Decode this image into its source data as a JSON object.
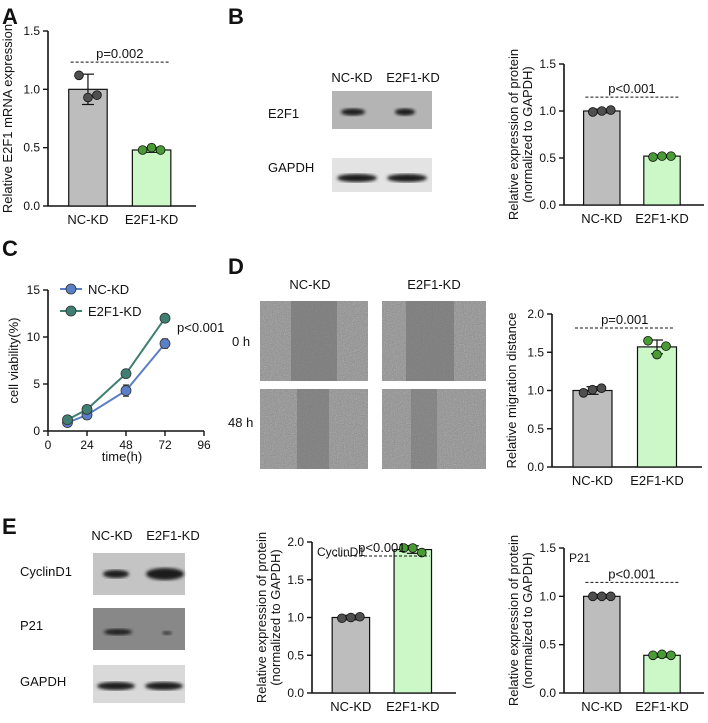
{
  "colors": {
    "nc_bar": "#bdbdbd",
    "e2f1_bar": "#ccf7c7",
    "nc_point": "#4f4f4f",
    "e2f1_point": "#4a9a35",
    "line_nc": "#5b7fc7",
    "line_e2f1": "#3f7f72",
    "blot_bg": "#b4b4b4",
    "blot_band": "#1a1a1a",
    "micro_bg": "#8e8e8e"
  },
  "panels": {
    "A": "A",
    "B": "B",
    "C": "C",
    "D": "D",
    "E": "E"
  },
  "blots": {
    "B": {
      "lanes": [
        "NC-KD",
        "E2F1-KD"
      ],
      "rows": [
        "E2F1",
        "GAPDH"
      ]
    },
    "E": {
      "lanes": [
        "NC-KD",
        "E2F1-KD"
      ],
      "rows": [
        "CyclinD1",
        "P21",
        "GAPDH"
      ]
    }
  },
  "migration_images": {
    "cols": [
      "NC-KD",
      "E2F1-KD"
    ],
    "rows": [
      "0 h",
      "48 h"
    ]
  },
  "chart_data": [
    {
      "id": "A",
      "type": "bar",
      "title": "",
      "categories": [
        "NC-KD",
        "E2F1-KD"
      ],
      "values": [
        1.0,
        0.48
      ],
      "errors": [
        0.13,
        0.02
      ],
      "points": [
        [
          1.12,
          0.93,
          0.95
        ],
        [
          0.48,
          0.5,
          0.48
        ]
      ],
      "ylabel": "Relative E2F1 mRNA expression",
      "ylim": [
        0,
        1.5
      ],
      "yticks": [
        0.0,
        0.5,
        1.0,
        1.5
      ],
      "p_value": "p=0.002",
      "inner_label": ""
    },
    {
      "id": "B",
      "type": "bar",
      "title": "",
      "categories": [
        "NC-KD",
        "E2F1-KD"
      ],
      "values": [
        1.0,
        0.52
      ],
      "errors": [
        0.02,
        0.01
      ],
      "points": [
        [
          0.99,
          1.0,
          1.01
        ],
        [
          0.51,
          0.52,
          0.52
        ]
      ],
      "ylabel": [
        "Relative expression of protein",
        "(normalized to GAPDH)"
      ],
      "ylim": [
        0,
        1.5
      ],
      "yticks": [
        0.0,
        0.5,
        1.0,
        1.5
      ],
      "p_value": "p<0.001",
      "inner_label": ""
    },
    {
      "id": "C",
      "type": "line",
      "title": "",
      "x": [
        12,
        24,
        48,
        72
      ],
      "series": [
        {
          "name": "NC-KD",
          "values": [
            0.9,
            1.7,
            4.3,
            9.3
          ],
          "errors": [
            0.2,
            0.2,
            0.6,
            0.5
          ]
        },
        {
          "name": "E2F1-KD",
          "values": [
            1.2,
            2.3,
            6.1,
            12.0
          ],
          "errors": [
            0.2,
            0.2,
            0.3,
            0.3
          ]
        }
      ],
      "xlabel": "time(h)",
      "ylabel": "cell viability(%)",
      "xlim": [
        0,
        96
      ],
      "xticks": [
        0,
        24,
        48,
        72,
        96
      ],
      "ylim": [
        0,
        15
      ],
      "yticks": [
        0,
        5,
        10,
        15
      ],
      "p_value": "p<0.001",
      "legend": "top-left"
    },
    {
      "id": "D",
      "type": "bar",
      "title": "",
      "categories": [
        "NC-KD",
        "E2F1-KD"
      ],
      "values": [
        1.0,
        1.57
      ],
      "errors": [
        0.05,
        0.09
      ],
      "points": [
        [
          0.97,
          1.01,
          1.03
        ],
        [
          1.65,
          1.47,
          1.58
        ]
      ],
      "ylabel": "Relative migration distance",
      "ylim": [
        0,
        2.0
      ],
      "yticks": [
        0.0,
        0.5,
        1.0,
        1.5,
        2.0
      ],
      "p_value": "p=0.001",
      "inner_label": ""
    },
    {
      "id": "E_cyclin",
      "type": "bar",
      "title": "",
      "categories": [
        "NC-KD",
        "E2F1-KD"
      ],
      "values": [
        1.0,
        1.9
      ],
      "errors": [
        0.03,
        0.05
      ],
      "points": [
        [
          0.99,
          1.0,
          1.01
        ],
        [
          1.92,
          1.92,
          1.86
        ]
      ],
      "ylabel": [
        "Relative expression of protein",
        "(normalized to GAPDH)"
      ],
      "ylim": [
        0,
        2.0
      ],
      "yticks": [
        0.0,
        0.5,
        1.0,
        1.5,
        2.0
      ],
      "p_value": "p<0.001",
      "inner_label": "CyclinD1"
    },
    {
      "id": "E_p21",
      "type": "bar",
      "title": "",
      "categories": [
        "NC-KD",
        "E2F1-KD"
      ],
      "values": [
        1.0,
        0.39
      ],
      "errors": [
        0.02,
        0.02
      ],
      "points": [
        [
          1.0,
          1.0,
          1.0
        ],
        [
          0.39,
          0.4,
          0.39
        ]
      ],
      "ylabel": [
        "Relative expression of protein",
        "(normalized to GAPDH)"
      ],
      "ylim": [
        0,
        1.5
      ],
      "yticks": [
        0.0,
        0.5,
        1.0,
        1.5
      ],
      "p_value": "p<0.001",
      "inner_label": "P21"
    }
  ]
}
